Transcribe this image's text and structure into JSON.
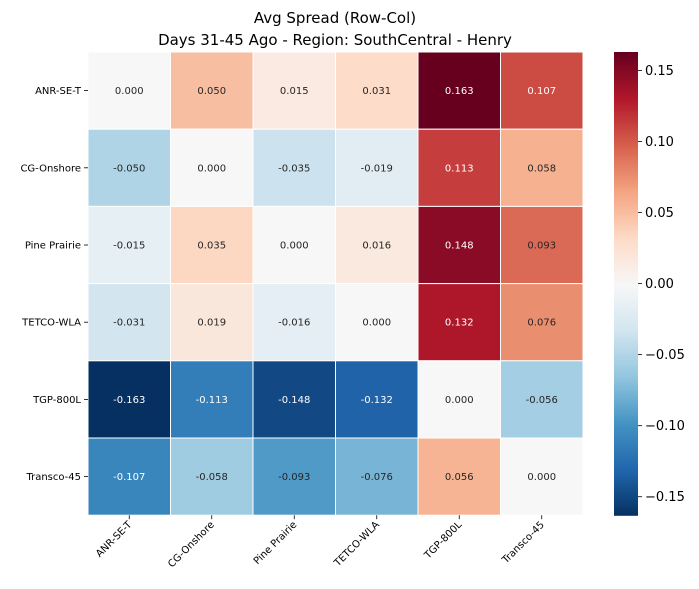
{
  "chart_data": {
    "type": "heatmap",
    "title": "Avg Spread (Row-Col)",
    "subtitle": "Days 31-45 Ago - Region: SouthCentral - Henry",
    "rows": [
      "ANR-SE-T",
      "CG-Onshore",
      "Pine Prairie",
      "TETCO-WLA",
      "TGP-800L",
      "Transco-45"
    ],
    "cols": [
      "ANR-SE-T",
      "CG-Onshore",
      "Pine Prairie",
      "TETCO-WLA",
      "TGP-800L",
      "Transco-45"
    ],
    "values": [
      [
        0.0,
        0.05,
        0.015,
        0.031,
        0.163,
        0.107
      ],
      [
        -0.05,
        0.0,
        -0.035,
        -0.019,
        0.113,
        0.058
      ],
      [
        -0.015,
        0.035,
        0.0,
        0.016,
        0.148,
        0.093
      ],
      [
        -0.031,
        0.019,
        -0.016,
        0.0,
        0.132,
        0.076
      ],
      [
        -0.163,
        -0.113,
        -0.148,
        -0.132,
        0.0,
        -0.056
      ],
      [
        -0.107,
        -0.058,
        -0.093,
        -0.076,
        0.056,
        0.0
      ]
    ],
    "labels": [
      [
        "0.000",
        "0.050",
        "0.015",
        "0.031",
        "0.163",
        "0.107"
      ],
      [
        "-0.050",
        "0.000",
        "-0.035",
        "-0.019",
        "0.113",
        "0.058"
      ],
      [
        "-0.015",
        "0.035",
        "0.000",
        "0.016",
        "0.148",
        "0.093"
      ],
      [
        "-0.031",
        "0.019",
        "-0.016",
        "0.000",
        "0.132",
        "0.076"
      ],
      [
        "-0.163",
        "-0.113",
        "-0.148",
        "-0.132",
        "0.000",
        "-0.056"
      ],
      [
        "-0.107",
        "-0.058",
        "-0.093",
        "-0.076",
        "0.056",
        "0.000"
      ]
    ],
    "colormap": "RdBu_r",
    "vmin": -0.163,
    "vmax": 0.163,
    "colorbar_ticks": [
      0.15,
      0.1,
      0.05,
      0.0,
      -0.05,
      -0.1,
      -0.15
    ],
    "colorbar_tick_labels": [
      "0.15",
      "0.10",
      "0.05",
      "0.00",
      "−0.05",
      "−0.10",
      "−0.15"
    ]
  }
}
